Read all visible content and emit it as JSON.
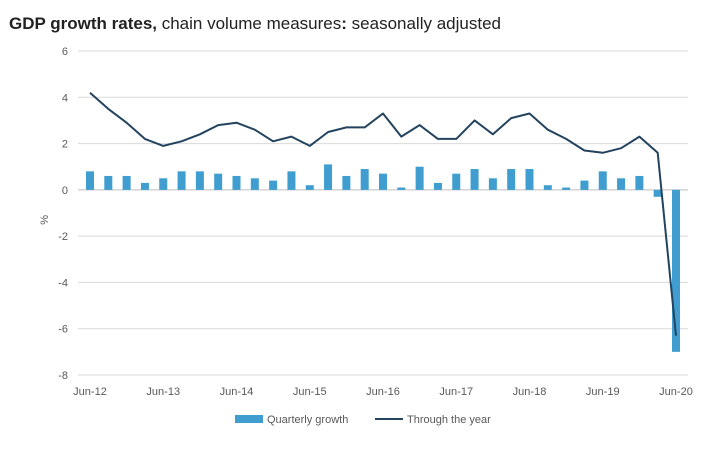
{
  "title": {
    "bold_part": "GDP growth rates,",
    "rest_part": " chain volume measures",
    "colon": ":",
    "suffix": " seasonally adjusted"
  },
  "colors": {
    "bar": "#3f9ecf",
    "line": "#23435f",
    "grid": "#d9d9d9",
    "axis": "#bfbfbf"
  },
  "chart_data": {
    "type": "bar+line",
    "title": "GDP growth rates, chain volume measures: seasonally adjusted",
    "xlabel": "",
    "ylabel": "%",
    "ylim": [
      -8,
      6
    ],
    "yticks": [
      6,
      4,
      2,
      0,
      -2,
      -4,
      -6,
      -8
    ],
    "grid": true,
    "legend_position": "bottom",
    "x_tick_labels": [
      "Jun-12",
      "Jun-13",
      "Jun-14",
      "Jun-15",
      "Jun-16",
      "Jun-17",
      "Jun-18",
      "Jun-19",
      "Jun-20"
    ],
    "x_tick_indices": [
      0,
      4,
      8,
      12,
      16,
      20,
      24,
      28,
      32
    ],
    "categories": [
      "Jun-12",
      "Sep-12",
      "Dec-12",
      "Mar-13",
      "Jun-13",
      "Sep-13",
      "Dec-13",
      "Mar-14",
      "Jun-14",
      "Sep-14",
      "Dec-14",
      "Mar-15",
      "Jun-15",
      "Sep-15",
      "Dec-15",
      "Mar-16",
      "Jun-16",
      "Sep-16",
      "Dec-16",
      "Mar-17",
      "Jun-17",
      "Sep-17",
      "Dec-17",
      "Mar-18",
      "Jun-18",
      "Sep-18",
      "Dec-18",
      "Mar-19",
      "Jun-19",
      "Sep-19",
      "Dec-19",
      "Mar-20",
      "Jun-20"
    ],
    "series": [
      {
        "name": "Quarterly growth",
        "type": "bar",
        "values": [
          0.8,
          0.6,
          0.6,
          0.3,
          0.5,
          0.8,
          0.8,
          0.7,
          0.6,
          0.5,
          0.4,
          0.8,
          0.2,
          1.1,
          0.6,
          0.9,
          0.7,
          0.1,
          1.0,
          0.3,
          0.7,
          0.9,
          0.5,
          0.9,
          0.9,
          0.2,
          0.1,
          0.4,
          0.8,
          0.5,
          0.6,
          -0.3,
          -7.0
        ]
      },
      {
        "name": "Through the year",
        "type": "line",
        "values": [
          4.2,
          3.5,
          2.9,
          2.2,
          1.9,
          2.1,
          2.4,
          2.8,
          2.9,
          2.6,
          2.1,
          2.3,
          1.9,
          2.5,
          2.7,
          2.7,
          3.3,
          2.3,
          2.8,
          2.2,
          2.2,
          3.0,
          2.4,
          3.1,
          3.3,
          2.6,
          2.2,
          1.7,
          1.6,
          1.8,
          2.3,
          1.6,
          -6.3
        ]
      }
    ]
  }
}
